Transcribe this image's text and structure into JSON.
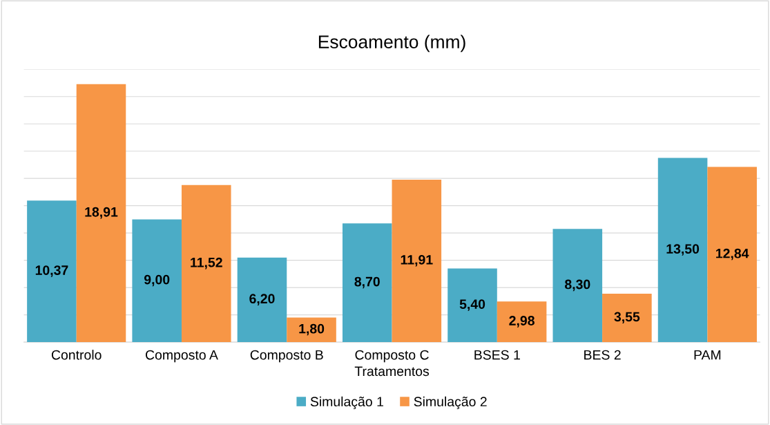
{
  "chart_data": {
    "type": "bar",
    "title": "Escoamento (mm)",
    "xlabel": "Tratamentos",
    "categories": [
      "Controlo",
      "Composto A",
      "Composto B",
      "Composto C",
      "BSES 1",
      "BES 2",
      "PAM"
    ],
    "series": [
      {
        "name": "Simulação 1",
        "color": "#4bacc6",
        "values": [
          10.37,
          9.0,
          6.2,
          8.7,
          5.4,
          8.3,
          13.5
        ],
        "value_labels": [
          "10,37",
          "9,00",
          "6,20",
          "8,70",
          "5,40",
          "8,30",
          "13,50"
        ]
      },
      {
        "name": "Simulação 2",
        "color": "#f79646",
        "values": [
          18.91,
          11.52,
          1.8,
          11.91,
          2.98,
          3.55,
          12.84
        ],
        "value_labels": [
          "18,91",
          "11,52",
          "1,80",
          "11,91",
          "2,98",
          "3,55",
          "12,84"
        ]
      }
    ],
    "ylim": [
      0,
      20
    ],
    "yticks": [
      {
        "value": 0,
        "label": null
      },
      {
        "value": 2,
        "label": null
      },
      {
        "value": 4,
        "label": null
      },
      {
        "value": 6,
        "label": null
      },
      {
        "value": 8,
        "label": null
      },
      {
        "value": 10,
        "label": null
      },
      {
        "value": 12,
        "label": null
      },
      {
        "value": 14,
        "label": null
      },
      {
        "value": 16,
        "label": null
      },
      {
        "value": 18,
        "label": null
      },
      {
        "value": 20,
        "label": null
      }
    ],
    "grid": "y",
    "legend": "bottom",
    "tick_labels": "x"
  }
}
